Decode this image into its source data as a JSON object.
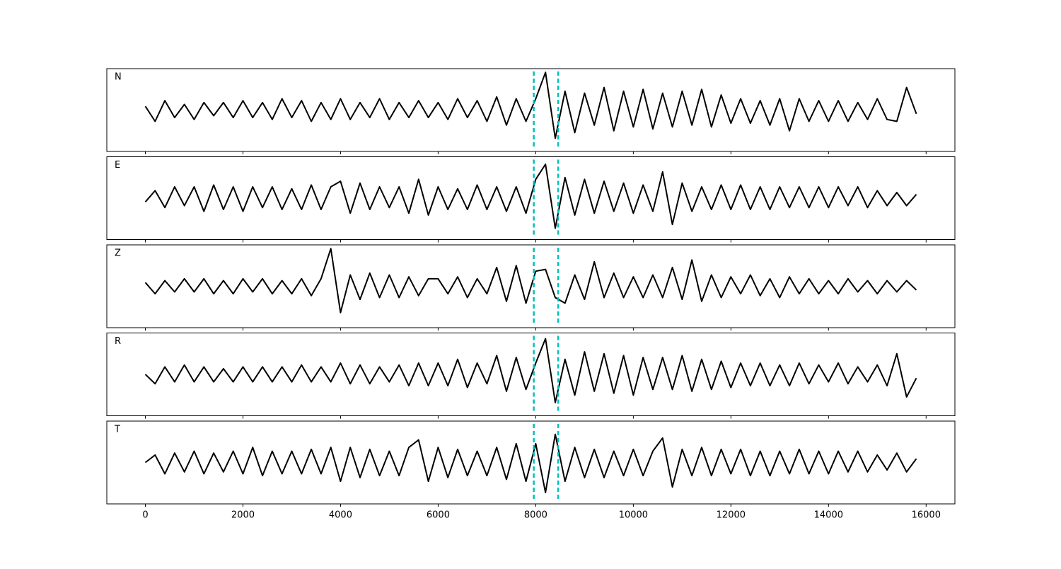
{
  "chart_data": {
    "type": "line",
    "layout": "stacked",
    "x": [
      0,
      200,
      400,
      600,
      800,
      1000,
      1200,
      1400,
      1600,
      1800,
      2000,
      2200,
      2400,
      2600,
      2800,
      3000,
      3200,
      3400,
      3600,
      3800,
      4000,
      4200,
      4400,
      4600,
      4800,
      5000,
      5200,
      5400,
      5600,
      5800,
      6000,
      6200,
      6400,
      6600,
      6800,
      7000,
      7200,
      7400,
      7600,
      7800,
      8000,
      8200,
      8400,
      8600,
      8800,
      9000,
      9200,
      9400,
      9600,
      9800,
      10000,
      10200,
      10400,
      10600,
      10800,
      11000,
      11200,
      11400,
      11600,
      11800,
      12000,
      12200,
      12400,
      12600,
      12800,
      13000,
      13200,
      13400,
      13600,
      13800,
      14000,
      14200,
      14400,
      14600,
      14800,
      15000,
      15200,
      15400,
      15600,
      15800
    ],
    "xlim": [
      -790,
      16590
    ],
    "xticks": [
      0,
      2000,
      4000,
      6000,
      8000,
      10000,
      12000,
      14000,
      16000
    ],
    "ylim": [
      -1.1,
      1.1
    ],
    "vlines": [
      7960,
      8460
    ],
    "vline_color": "#00bfbf",
    "line_color": "#000000",
    "series": [
      {
        "name": "N",
        "values": [
          0.1,
          -0.3,
          0.25,
          -0.2,
          0.15,
          -0.25,
          0.2,
          -0.15,
          0.2,
          -0.2,
          0.25,
          -0.2,
          0.2,
          -0.25,
          0.3,
          -0.2,
          0.25,
          -0.3,
          0.2,
          -0.25,
          0.3,
          -0.25,
          0.2,
          -0.2,
          0.3,
          -0.25,
          0.2,
          -0.2,
          0.25,
          -0.2,
          0.2,
          -0.25,
          0.3,
          -0.2,
          0.25,
          -0.3,
          0.35,
          -0.4,
          0.3,
          -0.3,
          0.3,
          1.0,
          -0.75,
          0.5,
          -0.6,
          0.45,
          -0.4,
          0.6,
          -0.55,
          0.5,
          -0.45,
          0.55,
          -0.5,
          0.45,
          -0.45,
          0.5,
          -0.4,
          0.55,
          -0.45,
          0.4,
          -0.35,
          0.3,
          -0.35,
          0.25,
          -0.4,
          0.3,
          -0.55,
          0.3,
          -0.3,
          0.25,
          -0.3,
          0.25,
          -0.3,
          0.2,
          -0.25,
          0.3,
          -0.25,
          -0.3,
          0.6,
          -0.1
        ]
      },
      {
        "name": "E",
        "values": [
          -0.1,
          0.2,
          -0.25,
          0.3,
          -0.2,
          0.3,
          -0.35,
          0.35,
          -0.3,
          0.3,
          -0.35,
          0.3,
          -0.25,
          0.3,
          -0.3,
          0.25,
          -0.3,
          0.35,
          -0.3,
          0.3,
          0.45,
          -0.4,
          0.4,
          -0.3,
          0.3,
          -0.25,
          0.3,
          -0.4,
          0.5,
          -0.45,
          0.3,
          -0.3,
          0.25,
          -0.3,
          0.35,
          -0.3,
          0.3,
          -0.35,
          0.3,
          -0.4,
          0.5,
          0.9,
          -0.8,
          0.55,
          -0.45,
          0.5,
          -0.4,
          0.45,
          -0.35,
          0.4,
          -0.4,
          0.35,
          -0.35,
          0.7,
          -0.7,
          0.4,
          -0.35,
          0.3,
          -0.3,
          0.35,
          -0.3,
          0.35,
          -0.3,
          0.3,
          -0.3,
          0.3,
          -0.25,
          0.3,
          -0.25,
          0.3,
          -0.25,
          0.3,
          -0.2,
          0.3,
          -0.25,
          0.2,
          -0.2,
          0.15,
          -0.2,
          0.1
        ]
      },
      {
        "name": "Z",
        "values": [
          0.1,
          -0.2,
          0.15,
          -0.15,
          0.2,
          -0.15,
          0.2,
          -0.2,
          0.15,
          -0.2,
          0.2,
          -0.15,
          0.2,
          -0.2,
          0.15,
          -0.2,
          0.2,
          -0.25,
          0.2,
          1.0,
          -0.7,
          0.3,
          -0.35,
          0.35,
          -0.3,
          0.3,
          -0.3,
          0.25,
          -0.25,
          0.2,
          0.2,
          -0.2,
          0.25,
          -0.3,
          0.2,
          -0.2,
          0.5,
          -0.4,
          0.55,
          -0.45,
          0.4,
          0.45,
          -0.3,
          -0.45,
          0.3,
          -0.35,
          0.65,
          -0.3,
          0.35,
          -0.3,
          0.25,
          -0.3,
          0.3,
          -0.3,
          0.5,
          -0.35,
          0.7,
          -0.4,
          0.3,
          -0.3,
          0.25,
          -0.2,
          0.3,
          -0.25,
          0.2,
          -0.3,
          0.25,
          -0.2,
          0.2,
          -0.2,
          0.15,
          -0.2,
          0.2,
          -0.15,
          0.15,
          -0.2,
          0.15,
          -0.15,
          0.15,
          -0.1
        ]
      },
      {
        "name": "R",
        "values": [
          0.0,
          -0.25,
          0.2,
          -0.2,
          0.25,
          -0.2,
          0.2,
          -0.2,
          0.15,
          -0.2,
          0.2,
          -0.2,
          0.2,
          -0.2,
          0.2,
          -0.2,
          0.25,
          -0.2,
          0.2,
          -0.2,
          0.3,
          -0.25,
          0.25,
          -0.25,
          0.2,
          -0.2,
          0.25,
          -0.3,
          0.3,
          -0.3,
          0.3,
          -0.3,
          0.4,
          -0.35,
          0.3,
          -0.25,
          0.5,
          -0.45,
          0.45,
          -0.4,
          0.3,
          0.95,
          -0.75,
          0.4,
          -0.55,
          0.6,
          -0.45,
          0.55,
          -0.5,
          0.5,
          -0.55,
          0.45,
          -0.4,
          0.45,
          -0.4,
          0.5,
          -0.45,
          0.4,
          -0.4,
          0.35,
          -0.35,
          0.3,
          -0.3,
          0.3,
          -0.3,
          0.25,
          -0.3,
          0.3,
          -0.25,
          0.25,
          -0.2,
          0.3,
          -0.25,
          0.2,
          -0.2,
          0.25,
          -0.3,
          0.55,
          -0.6,
          -0.1
        ]
      },
      {
        "name": "T",
        "values": [
          0.0,
          0.2,
          -0.3,
          0.25,
          -0.25,
          0.3,
          -0.3,
          0.25,
          -0.25,
          0.3,
          -0.3,
          0.4,
          -0.35,
          0.3,
          -0.3,
          0.3,
          -0.3,
          0.35,
          -0.3,
          0.4,
          -0.5,
          0.4,
          -0.4,
          0.35,
          -0.35,
          0.3,
          -0.35,
          0.4,
          0.6,
          -0.5,
          0.4,
          -0.4,
          0.35,
          -0.35,
          0.3,
          -0.35,
          0.4,
          -0.45,
          0.5,
          -0.5,
          0.5,
          -0.8,
          0.75,
          -0.5,
          0.4,
          -0.4,
          0.35,
          -0.4,
          0.3,
          -0.35,
          0.35,
          -0.35,
          0.3,
          0.65,
          -0.65,
          0.35,
          -0.35,
          0.4,
          -0.35,
          0.35,
          -0.3,
          0.35,
          -0.35,
          0.3,
          -0.35,
          0.3,
          -0.3,
          0.35,
          -0.3,
          0.3,
          -0.3,
          0.3,
          -0.25,
          0.3,
          -0.25,
          0.2,
          -0.2,
          0.25,
          -0.25,
          0.1
        ]
      }
    ]
  }
}
